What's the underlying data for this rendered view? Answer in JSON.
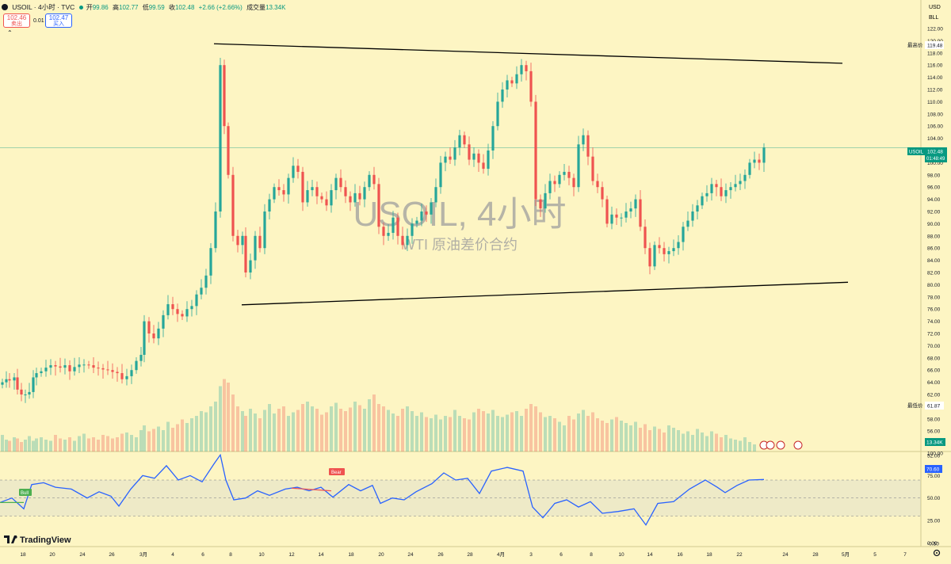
{
  "header": {
    "symbol_line": "USOIL · 4小时 · TVC",
    "open_label": "开",
    "open": "99.86",
    "high_label": "高",
    "high": "102.77",
    "low_label": "低",
    "low": "99.59",
    "close_label": "收",
    "close": "102.48",
    "change": "+2.66 (+2.66%)",
    "volume_label": "成交量",
    "volume": "13.34K"
  },
  "trade": {
    "sell_price": "102.46",
    "sell_label": "卖出",
    "spread": "0.01",
    "buy_price": "102.47",
    "buy_label": "买入"
  },
  "watermark": {
    "title": "USOIL, 4小时",
    "subtitle": "WTI 原油差价合约"
  },
  "brand": {
    "name": "TradingView"
  },
  "right_axis": {
    "currency": "USD",
    "bll": "BLL",
    "high_tag_label": "最高价",
    "high_tag_value": "119.48",
    "low_tag_label": "最低价",
    "low_tag_value": "61.87",
    "current_tag_symbol": "USOIL",
    "current_tag_value": "102.48",
    "current_tag_timer": "01:48:49",
    "volume_tag": "13.34K",
    "rsi_tag": "70.60"
  },
  "rsi_signals": {
    "bull": "Bull",
    "bear": "Bear"
  },
  "colors": {
    "up": "#26a69a",
    "down": "#ef5350",
    "rsi": "#2962ff",
    "trend": "#000000",
    "background": "#fdf5c3"
  },
  "chart_data": [
    {
      "type": "candlestick",
      "title": "USOIL, 4小时",
      "ylim": [
        50,
        124
      ],
      "yticks": [
        52,
        54,
        56,
        58,
        60,
        62,
        64,
        66,
        68,
        70,
        72,
        74,
        76,
        78,
        80,
        82,
        84,
        86,
        88,
        90,
        92,
        94,
        96,
        98,
        100,
        102,
        104,
        106,
        108,
        110,
        112,
        114,
        116,
        118,
        120,
        122
      ],
      "xticks": [
        "18",
        "20",
        "24",
        "26",
        "3月",
        "4",
        "6",
        "8",
        "10",
        "12",
        "14",
        "18",
        "20",
        "24",
        "26",
        "28",
        "4月",
        "3",
        "6",
        "8",
        "10",
        "14",
        "16",
        "18",
        "22",
        "24",
        "28",
        "5月",
        "5",
        "7",
        "9",
        "13"
      ],
      "xlim": [
        6,
        1162
      ],
      "series": [
        {
          "x": 3,
          "y": 64.0
        },
        {
          "x": 8,
          "y": 64.5
        },
        {
          "x": 12,
          "y": 64.3
        },
        {
          "x": 18,
          "y": 64.8
        },
        {
          "x": 22,
          "y": 62.8
        },
        {
          "x": 27,
          "y": 62.0
        },
        {
          "x": 32,
          "y": 62.0
        },
        {
          "x": 37,
          "y": 62.4
        },
        {
          "x": 42,
          "y": 64.8
        },
        {
          "x": 46,
          "y": 65.5
        },
        {
          "x": 52,
          "y": 65.8
        },
        {
          "x": 58,
          "y": 66.4
        },
        {
          "x": 64,
          "y": 66.8
        },
        {
          "x": 70,
          "y": 66.6
        },
        {
          "x": 76,
          "y": 66.4
        },
        {
          "x": 82,
          "y": 66.8
        },
        {
          "x": 88,
          "y": 65.8
        },
        {
          "x": 94,
          "y": 66.5
        },
        {
          "x": 100,
          "y": 66.9
        },
        {
          "x": 106,
          "y": 66.9
        },
        {
          "x": 112,
          "y": 66.8
        },
        {
          "x": 118,
          "y": 66.4
        },
        {
          "x": 124,
          "y": 66.3
        },
        {
          "x": 130,
          "y": 66.1
        },
        {
          "x": 136,
          "y": 66.0
        },
        {
          "x": 142,
          "y": 65.7
        },
        {
          "x": 148,
          "y": 65.5
        },
        {
          "x": 154,
          "y": 64.5
        },
        {
          "x": 160,
          "y": 65.0
        },
        {
          "x": 166,
          "y": 66.0
        },
        {
          "x": 172,
          "y": 67.5
        },
        {
          "x": 178,
          "y": 68.5
        },
        {
          "x": 182,
          "y": 74.0
        },
        {
          "x": 188,
          "y": 72.0
        },
        {
          "x": 194,
          "y": 71.2
        },
        {
          "x": 200,
          "y": 72.8
        },
        {
          "x": 206,
          "y": 75.0
        },
        {
          "x": 212,
          "y": 76.8
        },
        {
          "x": 218,
          "y": 76.0
        },
        {
          "x": 224,
          "y": 75.2
        },
        {
          "x": 230,
          "y": 74.8
        },
        {
          "x": 236,
          "y": 76.0
        },
        {
          "x": 242,
          "y": 76.5
        },
        {
          "x": 248,
          "y": 78.4
        },
        {
          "x": 254,
          "y": 79.5
        },
        {
          "x": 260,
          "y": 81.5
        },
        {
          "x": 266,
          "y": 86.0
        },
        {
          "x": 272,
          "y": 92.0
        },
        {
          "x": 278,
          "y": 116.0
        },
        {
          "x": 283,
          "y": 106.0
        },
        {
          "x": 288,
          "y": 98.0
        },
        {
          "x": 294,
          "y": 88.0
        },
        {
          "x": 300,
          "y": 86.5
        },
        {
          "x": 306,
          "y": 88.0
        },
        {
          "x": 310,
          "y": 82.0
        },
        {
          "x": 316,
          "y": 84.0
        },
        {
          "x": 322,
          "y": 88.0
        },
        {
          "x": 328,
          "y": 86.0
        },
        {
          "x": 334,
          "y": 92.0
        },
        {
          "x": 340,
          "y": 94.0
        },
        {
          "x": 346,
          "y": 96.0
        },
        {
          "x": 352,
          "y": 95.5
        },
        {
          "x": 358,
          "y": 94.8
        },
        {
          "x": 364,
          "y": 97.5
        },
        {
          "x": 370,
          "y": 99.5
        },
        {
          "x": 376,
          "y": 98.5
        },
        {
          "x": 382,
          "y": 93.5
        },
        {
          "x": 388,
          "y": 95.5
        },
        {
          "x": 394,
          "y": 96.0
        },
        {
          "x": 400,
          "y": 94.5
        },
        {
          "x": 406,
          "y": 94.0
        },
        {
          "x": 412,
          "y": 93.0
        },
        {
          "x": 418,
          "y": 95.5
        },
        {
          "x": 424,
          "y": 97.5
        },
        {
          "x": 430,
          "y": 96.0
        },
        {
          "x": 436,
          "y": 94.5
        },
        {
          "x": 442,
          "y": 93.5
        },
        {
          "x": 448,
          "y": 95.0
        },
        {
          "x": 454,
          "y": 94.0
        },
        {
          "x": 460,
          "y": 96.0
        },
        {
          "x": 466,
          "y": 98.0
        },
        {
          "x": 472,
          "y": 96.5
        },
        {
          "x": 478,
          "y": 89.5
        },
        {
          "x": 484,
          "y": 88.0
        },
        {
          "x": 490,
          "y": 88.5
        },
        {
          "x": 496,
          "y": 91.0
        },
        {
          "x": 502,
          "y": 88.0
        },
        {
          "x": 508,
          "y": 86.5
        },
        {
          "x": 514,
          "y": 88.0
        },
        {
          "x": 520,
          "y": 90.0
        },
        {
          "x": 526,
          "y": 90.5
        },
        {
          "x": 532,
          "y": 92.0
        },
        {
          "x": 538,
          "y": 91.5
        },
        {
          "x": 544,
          "y": 93.5
        },
        {
          "x": 550,
          "y": 96.0
        },
        {
          "x": 556,
          "y": 100.0
        },
        {
          "x": 562,
          "y": 101.0
        },
        {
          "x": 568,
          "y": 100.5
        },
        {
          "x": 574,
          "y": 102.5
        },
        {
          "x": 580,
          "y": 104.5
        },
        {
          "x": 586,
          "y": 103.0
        },
        {
          "x": 592,
          "y": 100.5
        },
        {
          "x": 598,
          "y": 101.5
        },
        {
          "x": 604,
          "y": 100.0
        },
        {
          "x": 610,
          "y": 99.0
        },
        {
          "x": 616,
          "y": 102.0
        },
        {
          "x": 622,
          "y": 106.0
        },
        {
          "x": 628,
          "y": 110.0
        },
        {
          "x": 634,
          "y": 112.0
        },
        {
          "x": 640,
          "y": 113.5
        },
        {
          "x": 646,
          "y": 113.0
        },
        {
          "x": 652,
          "y": 114.5
        },
        {
          "x": 658,
          "y": 116.0
        },
        {
          "x": 664,
          "y": 115.0
        },
        {
          "x": 670,
          "y": 110.0
        },
        {
          "x": 676,
          "y": 94.0
        },
        {
          "x": 682,
          "y": 92.5
        },
        {
          "x": 688,
          "y": 95.0
        },
        {
          "x": 694,
          "y": 97.0
        },
        {
          "x": 700,
          "y": 96.5
        },
        {
          "x": 706,
          "y": 98.0
        },
        {
          "x": 712,
          "y": 98.5
        },
        {
          "x": 718,
          "y": 97.5
        },
        {
          "x": 724,
          "y": 96.0
        },
        {
          "x": 730,
          "y": 103.0
        },
        {
          "x": 736,
          "y": 104.5
        },
        {
          "x": 742,
          "y": 101.0
        },
        {
          "x": 748,
          "y": 97.0
        },
        {
          "x": 754,
          "y": 96.0
        },
        {
          "x": 760,
          "y": 94.0
        },
        {
          "x": 766,
          "y": 90.0
        },
        {
          "x": 772,
          "y": 91.5
        },
        {
          "x": 778,
          "y": 91.0
        },
        {
          "x": 784,
          "y": 91.0
        },
        {
          "x": 790,
          "y": 92.0
        },
        {
          "x": 796,
          "y": 92.5
        },
        {
          "x": 802,
          "y": 94.0
        },
        {
          "x": 808,
          "y": 89.5
        },
        {
          "x": 814,
          "y": 86.0
        },
        {
          "x": 820,
          "y": 83.0
        },
        {
          "x": 826,
          "y": 86.5
        },
        {
          "x": 832,
          "y": 86.0
        },
        {
          "x": 838,
          "y": 85.0
        },
        {
          "x": 844,
          "y": 85.5
        },
        {
          "x": 850,
          "y": 86.0
        },
        {
          "x": 856,
          "y": 87.0
        },
        {
          "x": 862,
          "y": 89.5
        },
        {
          "x": 868,
          "y": 90.5
        },
        {
          "x": 874,
          "y": 92.0
        },
        {
          "x": 880,
          "y": 93.0
        },
        {
          "x": 886,
          "y": 94.5
        },
        {
          "x": 892,
          "y": 95.0
        },
        {
          "x": 898,
          "y": 96.5
        },
        {
          "x": 904,
          "y": 96.0
        },
        {
          "x": 910,
          "y": 94.5
        },
        {
          "x": 916,
          "y": 95.5
        },
        {
          "x": 922,
          "y": 96.0
        },
        {
          "x": 928,
          "y": 96.5
        },
        {
          "x": 934,
          "y": 97.0
        },
        {
          "x": 940,
          "y": 98.0
        },
        {
          "x": 946,
          "y": 100.0
        },
        {
          "x": 952,
          "y": 100.5
        },
        {
          "x": 958,
          "y": 100.0
        },
        {
          "x": 964,
          "y": 102.48
        }
      ],
      "trendlines": [
        {
          "from": [
            270,
            119.5
          ],
          "to": [
            1063,
            116.3
          ]
        },
        {
          "from": [
            305,
            76.7
          ],
          "to": [
            1070,
            80.4
          ]
        }
      ],
      "volume": [
        14,
        10,
        9,
        12,
        11,
        8,
        10,
        13,
        9,
        11,
        12,
        10,
        9,
        14,
        11,
        10,
        12,
        9,
        13,
        15,
        11,
        12,
        10,
        14,
        13,
        11,
        12,
        15,
        16,
        14,
        12,
        18,
        22,
        17,
        19,
        21,
        18,
        25,
        20,
        23,
        27,
        24,
        28,
        30,
        34,
        33,
        38,
        42,
        55,
        61,
        58,
        48,
        38,
        34,
        30,
        36,
        32,
        28,
        35,
        40,
        32,
        36,
        38,
        30,
        33,
        35,
        40,
        42,
        38,
        36,
        31,
        33,
        38,
        41,
        36,
        34,
        37,
        42,
        39,
        36,
        44,
        48,
        40,
        38,
        35,
        32,
        30,
        36,
        38,
        34,
        30,
        33,
        29,
        28,
        31,
        27,
        30,
        29,
        35,
        30,
        28,
        27,
        33,
        36,
        34,
        32,
        35,
        30,
        29,
        31,
        33,
        34,
        30,
        36,
        40,
        38,
        33,
        29,
        30,
        28,
        25,
        22,
        30,
        27,
        32,
        35,
        30,
        33,
        28,
        26,
        24,
        27,
        29,
        26,
        24,
        22,
        25,
        20,
        23,
        18,
        21,
        19,
        16,
        22,
        20,
        18,
        15,
        17,
        14,
        19,
        16,
        13,
        17,
        15,
        12,
        14,
        11,
        10,
        9,
        12,
        8,
        6
      ],
      "volume_ylim": [
        0,
        100
      ]
    },
    {
      "type": "line",
      "title": "RSI",
      "ylim": [
        -2,
        100
      ],
      "yticks": [
        100.0,
        75.0,
        50.0,
        25.0,
        0.0,
        -0.5
      ],
      "band": [
        30,
        70
      ],
      "series": [
        {
          "x": 0,
          "y": 45
        },
        {
          "x": 15,
          "y": 50
        },
        {
          "x": 30,
          "y": 38
        },
        {
          "x": 40,
          "y": 65
        },
        {
          "x": 55,
          "y": 67
        },
        {
          "x": 70,
          "y": 62
        },
        {
          "x": 90,
          "y": 60
        },
        {
          "x": 110,
          "y": 50
        },
        {
          "x": 125,
          "y": 57
        },
        {
          "x": 140,
          "y": 52
        },
        {
          "x": 150,
          "y": 41
        },
        {
          "x": 165,
          "y": 60
        },
        {
          "x": 180,
          "y": 75
        },
        {
          "x": 195,
          "y": 72
        },
        {
          "x": 210,
          "y": 86
        },
        {
          "x": 225,
          "y": 70
        },
        {
          "x": 240,
          "y": 75
        },
        {
          "x": 255,
          "y": 68
        },
        {
          "x": 270,
          "y": 88
        },
        {
          "x": 278,
          "y": 98
        },
        {
          "x": 285,
          "y": 70
        },
        {
          "x": 295,
          "y": 48
        },
        {
          "x": 310,
          "y": 50
        },
        {
          "x": 325,
          "y": 58
        },
        {
          "x": 340,
          "y": 53
        },
        {
          "x": 360,
          "y": 60
        },
        {
          "x": 375,
          "y": 62
        },
        {
          "x": 390,
          "y": 58
        },
        {
          "x": 405,
          "y": 62
        },
        {
          "x": 420,
          "y": 51
        },
        {
          "x": 440,
          "y": 65
        },
        {
          "x": 455,
          "y": 58
        },
        {
          "x": 470,
          "y": 64
        },
        {
          "x": 480,
          "y": 44
        },
        {
          "x": 495,
          "y": 50
        },
        {
          "x": 510,
          "y": 48
        },
        {
          "x": 525,
          "y": 57
        },
        {
          "x": 545,
          "y": 66
        },
        {
          "x": 560,
          "y": 78
        },
        {
          "x": 575,
          "y": 70
        },
        {
          "x": 590,
          "y": 72
        },
        {
          "x": 605,
          "y": 55
        },
        {
          "x": 620,
          "y": 80
        },
        {
          "x": 640,
          "y": 84
        },
        {
          "x": 660,
          "y": 80
        },
        {
          "x": 672,
          "y": 40
        },
        {
          "x": 685,
          "y": 28
        },
        {
          "x": 700,
          "y": 44
        },
        {
          "x": 715,
          "y": 48
        },
        {
          "x": 730,
          "y": 40
        },
        {
          "x": 745,
          "y": 46
        },
        {
          "x": 760,
          "y": 33
        },
        {
          "x": 780,
          "y": 35
        },
        {
          "x": 800,
          "y": 38
        },
        {
          "x": 815,
          "y": 20
        },
        {
          "x": 830,
          "y": 44
        },
        {
          "x": 850,
          "y": 46
        },
        {
          "x": 870,
          "y": 60
        },
        {
          "x": 890,
          "y": 70
        },
        {
          "x": 905,
          "y": 62
        },
        {
          "x": 915,
          "y": 56
        },
        {
          "x": 930,
          "y": 64
        },
        {
          "x": 945,
          "y": 70
        },
        {
          "x": 964,
          "y": 70.6
        }
      ]
    }
  ]
}
